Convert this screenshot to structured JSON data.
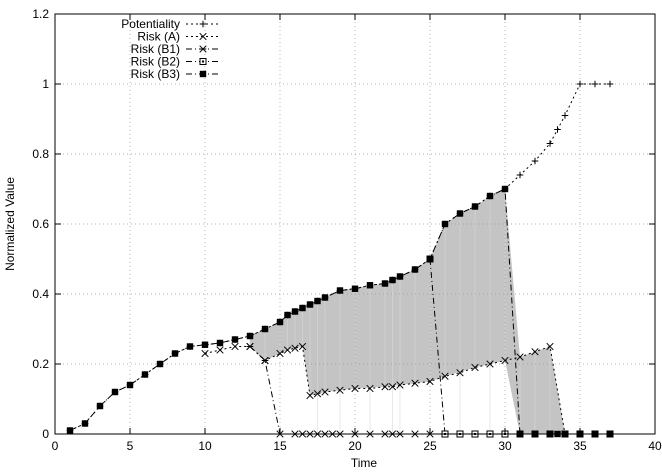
{
  "chart_data": {
    "type": "line",
    "xlabel": "Time",
    "ylabel": "Normalized Value",
    "xlim": [
      0,
      40
    ],
    "ylim": [
      0,
      1.2
    ],
    "x_ticks": [
      0,
      5,
      10,
      15,
      20,
      25,
      30,
      35,
      40
    ],
    "y_ticks": [
      0,
      0.2,
      0.4,
      0.6,
      0.8,
      1,
      1.2
    ],
    "x_tick_labels": [
      "0",
      "5",
      "10",
      "15",
      "20",
      "25",
      "30",
      "35",
      "40"
    ],
    "y_tick_labels": [
      "0",
      "0.2",
      "0.4",
      "0.6",
      "0.8",
      "1",
      "1.2"
    ],
    "grid": true,
    "legend_position": "top-left",
    "shaded_region": "between Risk (B3) and lower risk curves",
    "series": [
      {
        "name": "Potentiality",
        "marker": "plus",
        "line": "dotted",
        "x": [
          1,
          2,
          3,
          4,
          5,
          6,
          7,
          8,
          9,
          10,
          11,
          12,
          13,
          14,
          15,
          15.5,
          16,
          16.5,
          17,
          17.5,
          18,
          19,
          20,
          21,
          22,
          22.5,
          23,
          24,
          25,
          26,
          27,
          28,
          29,
          30,
          31,
          32,
          33,
          33.5,
          34,
          35,
          36,
          37
        ],
        "y": [
          0.01,
          0.03,
          0.08,
          0.12,
          0.14,
          0.17,
          0.2,
          0.23,
          0.25,
          0.255,
          0.26,
          0.27,
          0.28,
          0.3,
          0.32,
          0.34,
          0.35,
          0.36,
          0.37,
          0.38,
          0.39,
          0.41,
          0.415,
          0.425,
          0.43,
          0.44,
          0.45,
          0.47,
          0.5,
          0.6,
          0.63,
          0.65,
          0.68,
          0.7,
          0.74,
          0.78,
          0.83,
          0.87,
          0.91,
          1.0,
          1.0,
          1.0
        ]
      },
      {
        "name": "Risk (A)",
        "marker": "x",
        "line": "dotted",
        "x": [
          10,
          11,
          12,
          13,
          14,
          15,
          15.5,
          16,
          16.5,
          17,
          17.5,
          18,
          19,
          20,
          21,
          22,
          22.5,
          23,
          24,
          25,
          26,
          27,
          28,
          29,
          30,
          31,
          32,
          33,
          34,
          35,
          36,
          37
        ],
        "y": [
          0.23,
          0.24,
          0.25,
          0.25,
          0.21,
          0.23,
          0.24,
          0.245,
          0.25,
          0.11,
          0.115,
          0.12,
          0.125,
          0.13,
          0.13,
          0.135,
          0.135,
          0.14,
          0.145,
          0.15,
          0.165,
          0.175,
          0.19,
          0.2,
          0.21,
          0.22,
          0.235,
          0.25,
          0.0,
          0.0,
          0.0,
          0.0
        ]
      },
      {
        "name": "Risk (B1)",
        "marker": "star",
        "line": "dashdot",
        "x": [
          13,
          14,
          15,
          16,
          16.5,
          17,
          17.5,
          18,
          18.5,
          19,
          20,
          21,
          22,
          22.5,
          23,
          24,
          25,
          26,
          27,
          28,
          29,
          30,
          31,
          32,
          33,
          34,
          35,
          36,
          37
        ],
        "y": [
          0.25,
          0.21,
          0.0,
          0.0,
          0.0,
          0.0,
          0.0,
          0.0,
          0.0,
          0.0,
          0.0,
          0.0,
          0.0,
          0.0,
          0.0,
          0.0,
          0.0,
          0.0,
          0.0,
          0.0,
          0.0,
          0.0,
          0.0,
          0.0,
          0.0,
          0.0,
          0.0,
          0.0,
          0.0
        ]
      },
      {
        "name": "Risk (B2)",
        "marker": "open-square",
        "line": "dashdot",
        "x": [
          25,
          26,
          27,
          28,
          29,
          30,
          31,
          32,
          33,
          34,
          35,
          36,
          37
        ],
        "y": [
          0.5,
          0.0,
          0.0,
          0.0,
          0.0,
          0.0,
          0.0,
          0.0,
          0.0,
          0.0,
          0.0,
          0.0,
          0.0
        ]
      },
      {
        "name": "Risk (B3)",
        "marker": "filled-square",
        "line": "dashdot",
        "x": [
          1,
          2,
          3,
          4,
          5,
          6,
          7,
          8,
          9,
          10,
          11,
          12,
          13,
          14,
          15,
          15.5,
          16,
          16.5,
          17,
          17.5,
          18,
          19,
          20,
          21,
          22,
          22.5,
          23,
          24,
          25,
          26,
          27,
          28,
          29,
          30,
          31,
          32,
          33,
          33.5,
          34,
          35,
          36,
          37
        ],
        "y": [
          0.01,
          0.03,
          0.08,
          0.12,
          0.14,
          0.17,
          0.2,
          0.23,
          0.25,
          0.255,
          0.26,
          0.27,
          0.28,
          0.3,
          0.32,
          0.34,
          0.35,
          0.36,
          0.37,
          0.38,
          0.39,
          0.41,
          0.415,
          0.425,
          0.43,
          0.44,
          0.45,
          0.47,
          0.5,
          0.6,
          0.63,
          0.65,
          0.68,
          0.7,
          0.0,
          0.0,
          0.0,
          0.0,
          0.0,
          0.0,
          0.0,
          0.0
        ]
      }
    ]
  }
}
